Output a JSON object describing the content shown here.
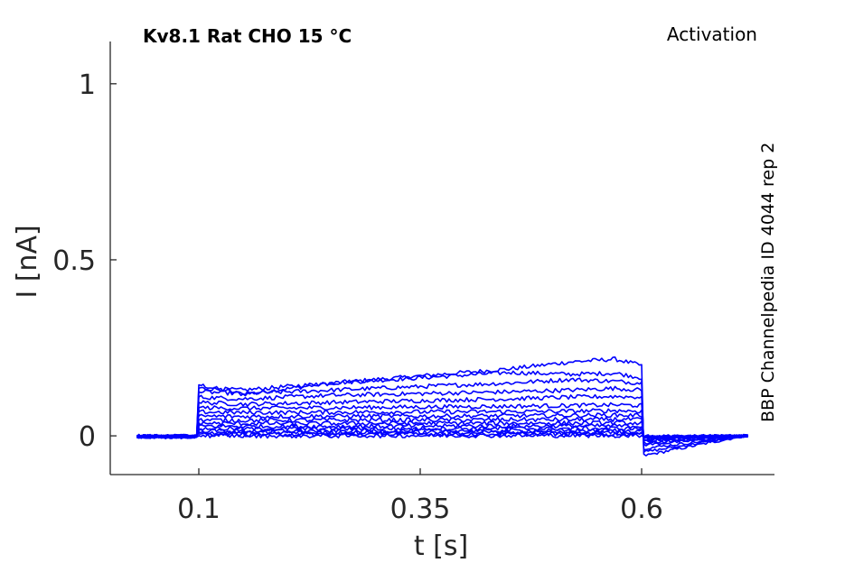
{
  "chart_data": {
    "type": "line",
    "title": "Kv8.1  Rat  CHO  15 °C",
    "protocol": "Activation",
    "source_note": "BBP Channelpedia ID 4044 rep 2",
    "xlabel": "t [s]",
    "ylabel": "I [nA]",
    "xlim": [
      0.0,
      0.75
    ],
    "ylim": [
      -0.11,
      1.12
    ],
    "xticks": [
      0.1,
      0.35,
      0.6
    ],
    "xtick_labels": [
      "0.1",
      "0.35",
      "0.6"
    ],
    "yticks": [
      0,
      0.5,
      1
    ],
    "ytick_labels": [
      "0",
      "0.5",
      "1"
    ],
    "grid": false,
    "line_color": "#0000ff",
    "pulse": {
      "baseline_t_start": 0.03,
      "step_on": 0.1,
      "step_off": 0.6,
      "t_end": 0.72
    },
    "series": [
      {
        "values": [
          -0.005,
          0.145,
          0.118,
          0.15,
          0.17,
          0.19,
          0.21,
          0.218,
          0.2,
          -0.055,
          0.002
        ]
      },
      {
        "values": [
          -0.004,
          0.135,
          0.13,
          0.15,
          0.165,
          0.18,
          0.175,
          0.178,
          0.165,
          -0.045,
          0.001
        ]
      },
      {
        "values": [
          -0.004,
          0.125,
          0.12,
          0.13,
          0.14,
          0.15,
          0.16,
          0.155,
          0.15,
          -0.035,
          0.0
        ]
      },
      {
        "values": [
          -0.003,
          0.11,
          0.105,
          0.115,
          0.12,
          0.125,
          0.13,
          0.135,
          0.13,
          -0.025,
          0.0
        ]
      },
      {
        "values": [
          -0.003,
          0.095,
          0.09,
          0.095,
          0.1,
          0.105,
          0.11,
          0.112,
          0.11,
          -0.02,
          0.0
        ]
      },
      {
        "values": [
          -0.002,
          0.08,
          0.078,
          0.08,
          0.082,
          0.084,
          0.086,
          0.088,
          0.086,
          -0.015,
          0.0
        ]
      },
      {
        "values": [
          -0.002,
          0.068,
          0.066,
          0.067,
          0.068,
          0.069,
          0.07,
          0.072,
          0.07,
          -0.012,
          0.0
        ]
      },
      {
        "values": [
          -0.002,
          0.056,
          0.055,
          0.056,
          0.056,
          0.057,
          0.058,
          0.059,
          0.058,
          -0.01,
          0.0
        ]
      },
      {
        "values": [
          -0.001,
          0.045,
          0.044,
          0.045,
          0.045,
          0.046,
          0.046,
          0.047,
          0.046,
          -0.008,
          0.0
        ]
      },
      {
        "values": [
          -0.001,
          0.036,
          0.035,
          0.035,
          0.036,
          0.036,
          0.036,
          0.037,
          0.036,
          -0.006,
          0.0
        ]
      },
      {
        "values": [
          -0.001,
          0.028,
          0.027,
          0.027,
          0.028,
          0.028,
          0.028,
          0.028,
          0.028,
          -0.005,
          0.0
        ]
      },
      {
        "values": [
          -0.001,
          0.021,
          0.02,
          0.02,
          0.021,
          0.021,
          0.021,
          0.021,
          0.021,
          -0.004,
          0.0
        ]
      },
      {
        "values": [
          0.0,
          0.015,
          0.014,
          0.014,
          0.015,
          0.015,
          0.015,
          0.015,
          0.015,
          -0.003,
          0.0
        ]
      },
      {
        "values": [
          0.0,
          0.01,
          0.009,
          0.009,
          0.01,
          0.01,
          0.01,
          0.01,
          0.01,
          -0.002,
          0.0
        ]
      },
      {
        "values": [
          0.0,
          0.005,
          0.004,
          0.004,
          0.005,
          0.005,
          0.005,
          0.005,
          0.005,
          -0.001,
          0.0
        ]
      },
      {
        "values": [
          0.0,
          0.001,
          0.0,
          0.0,
          0.001,
          0.001,
          0.001,
          0.001,
          0.001,
          0.0,
          0.0
        ]
      }
    ],
    "series_x": [
      0.03,
      0.1,
      0.15,
      0.25,
      0.35,
      0.45,
      0.52,
      0.57,
      0.6,
      0.605,
      0.72
    ]
  }
}
